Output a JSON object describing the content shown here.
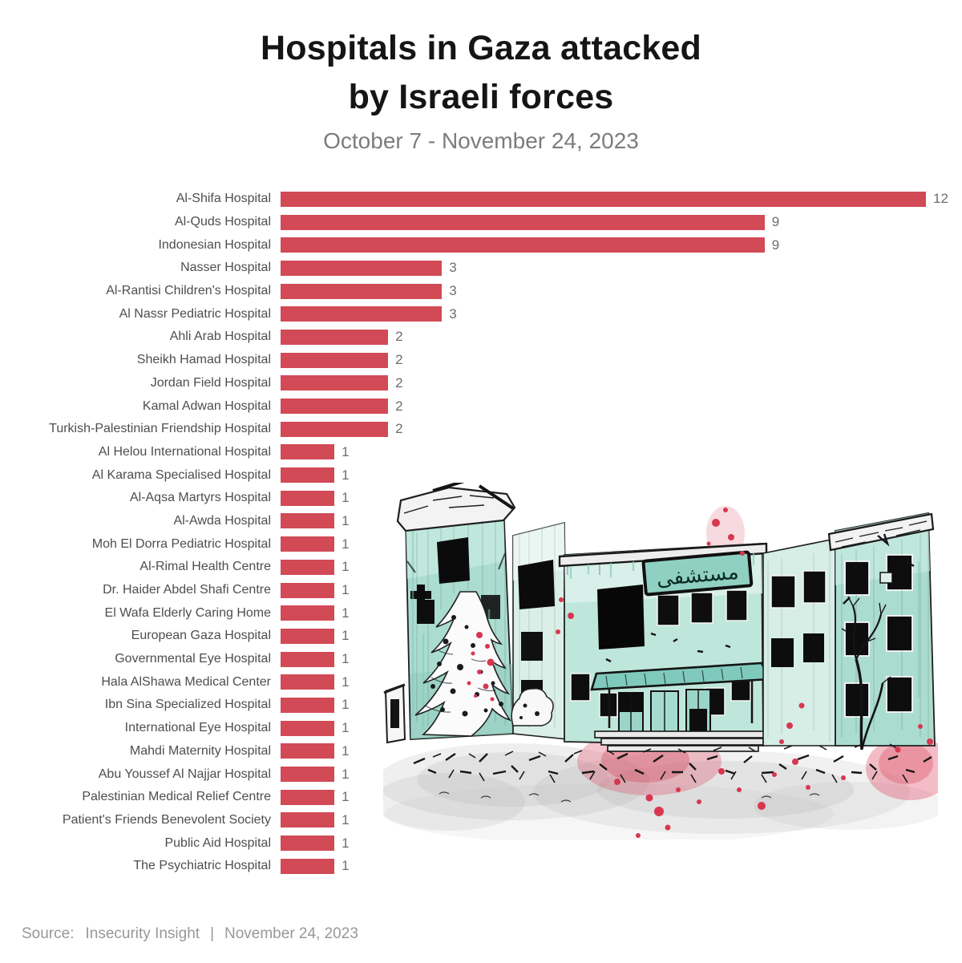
{
  "header": {
    "title_line1": "Hospitals in Gaza attacked",
    "title_line2": "by Israeli forces",
    "subtitle": "October 7 - November 24, 2023"
  },
  "chart_data": {
    "type": "bar",
    "orientation": "horizontal",
    "title": "Hospitals in Gaza attacked by Israeli forces",
    "subtitle": "October 7 - November 24, 2023",
    "xlabel": "",
    "ylabel": "",
    "xlim": [
      0,
      12
    ],
    "grid": false,
    "legend": "none",
    "bar_color": "#d14a56",
    "label_color": "#4e4e4e",
    "value_color": "#6d6d6d",
    "categories": [
      "Al-Shifa Hospital",
      "Al-Quds Hospital",
      "Indonesian Hospital",
      "Nasser Hospital",
      "Al-Rantisi Children's Hospital",
      "Al Nassr Pediatric Hospital",
      "Ahli Arab Hospital",
      "Sheikh Hamad Hospital",
      "Jordan Field Hospital",
      "Kamal Adwan Hospital",
      "Turkish-Palestinian Friendship Hospital",
      "Al Helou International Hospital",
      "Al Karama Specialised Hospital",
      "Al-Aqsa Martyrs Hospital",
      "Al-Awda Hospital",
      "Moh El Dorra Pediatric Hospital",
      "Al-Rimal Health Centre",
      "Dr. Haider Abdel Shafi Centre",
      "El Wafa Elderly Caring Home",
      "European Gaza Hospital",
      "Governmental Eye Hospital",
      "Hala AlShawa Medical Center",
      "Ibn Sina Specialized Hospital",
      "International Eye Hospital",
      "Mahdi Maternity Hospital",
      "Abu Youssef Al Najjar Hospital",
      "Palestinian Medical Relief Centre",
      "Patient's Friends Benevolent Society",
      "Public Aid Hospital",
      "The Psychiatric Hospital"
    ],
    "values": [
      12,
      9,
      9,
      3,
      3,
      3,
      2,
      2,
      2,
      2,
      2,
      1,
      1,
      1,
      1,
      1,
      1,
      1,
      1,
      1,
      1,
      1,
      1,
      1,
      1,
      1,
      1,
      1,
      1,
      1
    ]
  },
  "illustration": {
    "sign_text": "مستشفى",
    "colors": {
      "teal": "#a5dacd",
      "teal_dark": "#7fc7b8",
      "ink": "#1a1a1a",
      "red": "#df5068",
      "gray_wash": "#a0a0a0"
    }
  },
  "footer": {
    "source_label": "Source:",
    "source_name": "Insecurity Insight",
    "separator": "|",
    "date": "November 24, 2023"
  }
}
